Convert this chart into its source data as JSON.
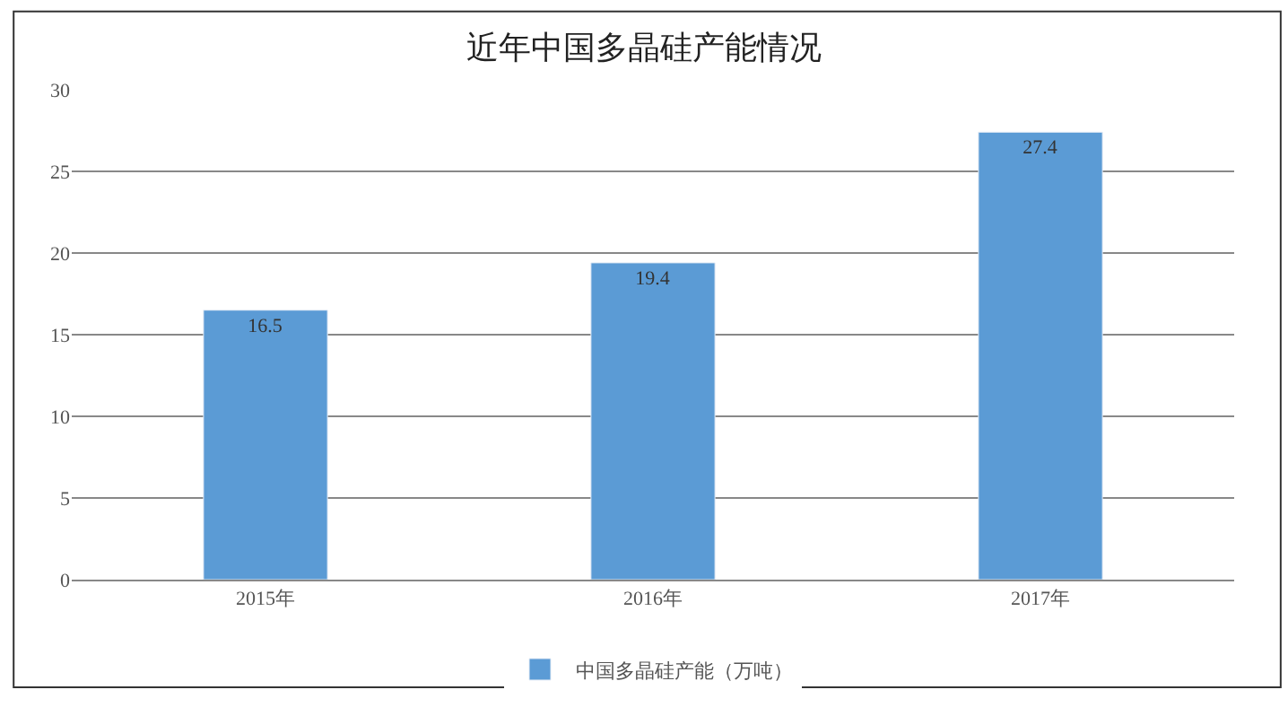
{
  "chart_data": {
    "type": "bar",
    "title": "近年中国多晶硅产能情况",
    "categories": [
      "2015年",
      "2016年",
      "2017年"
    ],
    "series": [
      {
        "name": "中国多晶硅产能（万吨）",
        "color": "#5b9bd5",
        "values": [
          16.5,
          19.4,
          27.4
        ]
      }
    ],
    "ylim": [
      0,
      30
    ],
    "yticks": [
      0,
      5,
      10,
      15,
      20,
      25,
      30
    ],
    "grid": "y",
    "legend": "bottom",
    "data_labels": true
  }
}
